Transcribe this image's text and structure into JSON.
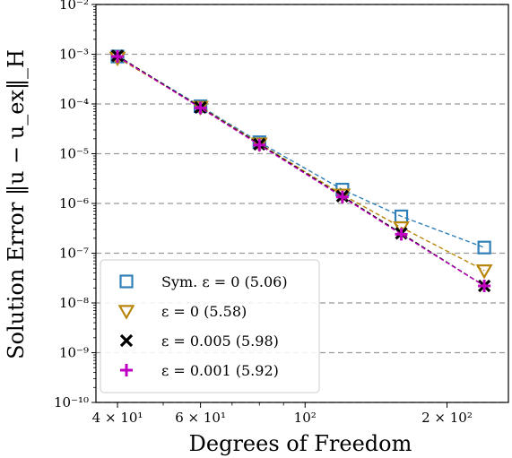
{
  "chart_data": {
    "type": "line",
    "xlabel": "Degrees of Freedom",
    "ylabel": "Solution Error ‖u − u_ex‖_H",
    "xscale": "log",
    "yscale": "log",
    "xlim": [
      36,
      270
    ],
    "ylim": [
      1e-10,
      0.01
    ],
    "x_ticks": [
      {
        "value": 40,
        "label": "4 × 10¹"
      },
      {
        "value": 60,
        "label": "6 × 10¹"
      },
      {
        "value": 100,
        "label": "10²"
      },
      {
        "value": 200,
        "label": "2 × 10²"
      }
    ],
    "y_ticks": [
      {
        "value": 0.01,
        "label": "10⁻²"
      },
      {
        "value": 0.001,
        "label": "10⁻³"
      },
      {
        "value": 0.0001,
        "label": "10⁻⁴"
      },
      {
        "value": 1e-05,
        "label": "10⁻⁵"
      },
      {
        "value": 1e-06,
        "label": "10⁻⁶"
      },
      {
        "value": 1e-07,
        "label": "10⁻⁷"
      },
      {
        "value": 1e-08,
        "label": "10⁻⁸"
      },
      {
        "value": 1e-09,
        "label": "10⁻⁹"
      },
      {
        "value": 1e-10,
        "label": "10⁻¹⁰"
      }
    ],
    "grid": "horizontal dashed",
    "legend_position": "lower-left",
    "series": [
      {
        "name": "Sym. ε = 0 (5.06)",
        "marker": "square",
        "color": "#2f7fb8",
        "x": [
          40,
          60,
          80,
          120,
          160,
          240
        ],
        "y": [
          0.0009,
          9e-05,
          1.7e-05,
          1.9e-06,
          5.5e-07,
          1.3e-07
        ]
      },
      {
        "name": "ε = 0 (5.58)",
        "marker": "triangle-down",
        "color": "#b8860b",
        "x": [
          40,
          60,
          80,
          120,
          160,
          240
        ],
        "y": [
          0.00085,
          8.7e-05,
          1.6e-05,
          1.5e-06,
          3.3e-07,
          4.5e-08
        ]
      },
      {
        "name": "ε = 0.005 (5.98)",
        "marker": "x",
        "color": "#000000",
        "x": [
          40,
          60,
          80,
          120,
          160,
          240
        ],
        "y": [
          0.00093,
          8.5e-05,
          1.55e-05,
          1.4e-06,
          2.5e-07,
          2.2e-08
        ]
      },
      {
        "name": "ε = 0.001 (5.92)",
        "marker": "plus",
        "color": "#c000c0",
        "x": [
          40,
          60,
          80,
          120,
          160,
          240
        ],
        "y": [
          0.0009,
          8.3e-05,
          1.5e-05,
          1.35e-06,
          2.4e-07,
          2.2e-08
        ]
      }
    ]
  }
}
